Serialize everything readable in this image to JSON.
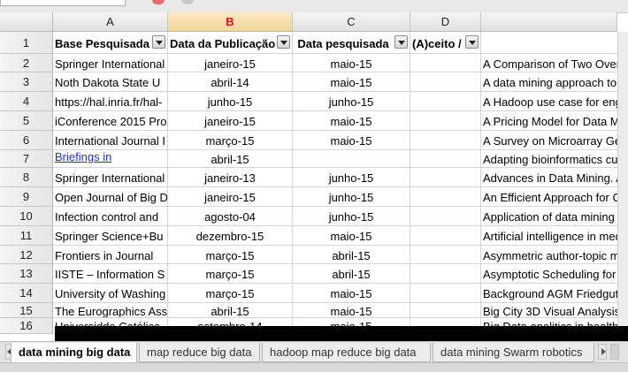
{
  "columns": [
    {
      "letter": "A",
      "active": false
    },
    {
      "letter": "B",
      "active": true
    },
    {
      "letter": "C",
      "active": false
    },
    {
      "letter": "D",
      "active": false
    },
    {
      "letter": "",
      "active": false
    }
  ],
  "header_row": {
    "row_number": "1",
    "cells": [
      "Base Pesquisada",
      "Data da Publicação",
      "Data pesquisada",
      "(A)ceito / ",
      ""
    ]
  },
  "rows": [
    {
      "num": "2",
      "a": "Springer International",
      "b": "janeiro-15",
      "c": "maio-15",
      "d": "",
      "e": "A Comparison of Two Overs"
    },
    {
      "num": "3",
      "a": "Noth Dakota State U",
      "b": "abril-14",
      "c": "maio-15",
      "d": "",
      "e": "A data mining approach to"
    },
    {
      "num": "4",
      "a": "https://hal.inria.fr/hal-",
      "b": "junho-15",
      "c": "junho-15",
      "d": "",
      "e": "A Hadoop use case for engi"
    },
    {
      "num": "5",
      "a": "iConference 2015 Pro",
      "b": "janeiro-15",
      "c": "maio-15",
      "d": "",
      "e": "A Pricing Model for Data Ma"
    },
    {
      "num": "6",
      "a": "International Journal I",
      "b": "março-15",
      "c": "maio-15",
      "d": "",
      "e": "A Survey on Microarray Gen"
    },
    {
      "num": "7",
      "a": "Briefings in",
      "b": "abril-15",
      "c": "",
      "d": "",
      "e": "Adapting bioinformatics curr",
      "a_link": true
    },
    {
      "num": "8",
      "a": "Springer International",
      "b": "janeiro-13",
      "c": "junho-15",
      "d": "",
      "e": "Advances in Data Mining. A"
    },
    {
      "num": "9",
      "a": "Open Journal of Big D",
      "b": "janeiro-15",
      "c": "junho-15",
      "d": "",
      "e": "An Efficient Approach for Co"
    },
    {
      "num": "10",
      "a": "Infection control and",
      "b": "agosto-04",
      "c": "junho-15",
      "d": "",
      "e": "Application of data mining te"
    },
    {
      "num": "11",
      "a": "Springer Science+Bu",
      "b": "dezembro-15",
      "c": "maio-15",
      "d": "",
      "e": "Artificial intelligence in medi"
    },
    {
      "num": "12",
      "a": "Frontiers in Journal",
      "b": "março-15",
      "c": "abril-15",
      "d": "",
      "e": "Asymmetric author-topic mo"
    },
    {
      "num": "13",
      "a": "IISTE – Information S",
      "b": "março-15",
      "c": "abril-15",
      "d": "",
      "e": "Asymptotic Scheduling for M"
    },
    {
      "num": "14",
      "a": "University of Washing",
      "b": "março-15",
      "c": "maio-15",
      "d": "",
      "e": "Background AGM Friedgut C"
    },
    {
      "num": "15",
      "a": "The Eurographics Ass",
      "b": "abril-15",
      "c": "maio-15",
      "d": "",
      "e": "Big City 3D Visual Analysis"
    },
    {
      "num": "16",
      "a": "Universidde Católica",
      "b": "setembro-14",
      "c": "maio-15",
      "d": "",
      "e": "Big Data analitics in healthc"
    }
  ],
  "sheet_tabs": [
    {
      "label": "data mining big data",
      "active": true
    },
    {
      "label": "map reduce big data",
      "active": false
    },
    {
      "label": "hadoop map reduce big data",
      "active": false
    },
    {
      "label": "data mining Swarm robotics",
      "active": false
    }
  ]
}
